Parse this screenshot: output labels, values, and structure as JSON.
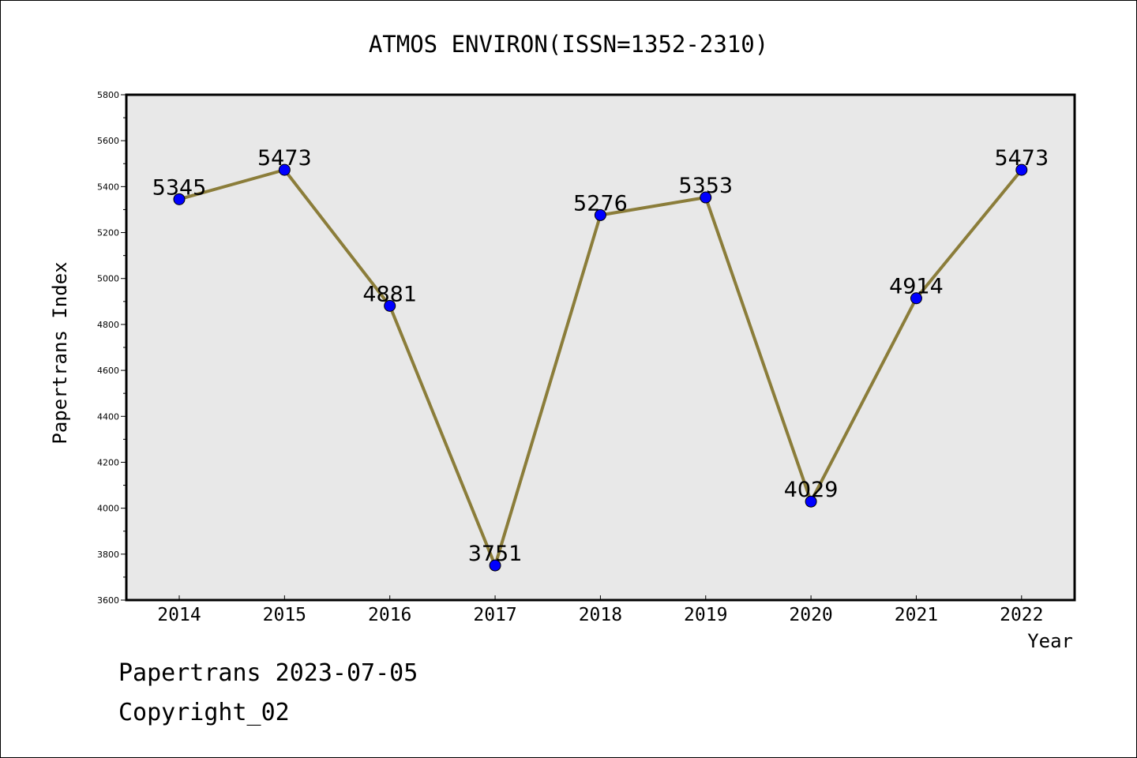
{
  "chart_data": {
    "type": "line",
    "title": "ATMOS ENVIRON(ISSN=1352-2310)",
    "xlabel": "Year",
    "ylabel": "Papertrans Index",
    "categories": [
      "2014",
      "2015",
      "2016",
      "2017",
      "2018",
      "2019",
      "2020",
      "2021",
      "2022"
    ],
    "series": [
      {
        "values": [
          5345,
          5473,
          4881,
          3751,
          5276,
          5353,
          4029,
          4914,
          5473
        ],
        "labels": [
          "5345",
          "5473",
          "4881",
          "3751",
          "5276",
          "5353",
          "4029",
          "4914",
          "5473"
        ]
      }
    ],
    "ylim": [
      3600,
      5800
    ],
    "yticks": [
      3600,
      3800,
      4000,
      4200,
      4400,
      4600,
      4800,
      5000,
      5200,
      5400,
      5600,
      5800
    ],
    "ytick_labels": [
      "3600",
      "3800",
      "4000",
      "4200",
      "4400",
      "4600",
      "4800",
      "5000",
      "5200",
      "5400",
      "5600",
      "5800"
    ],
    "grid": false,
    "legend": "none",
    "colors": {
      "line": "#8b7d3a",
      "marker": "#0000ff",
      "plot_background": "#e8e8e8",
      "axes": "#000000"
    }
  },
  "footer": {
    "line1": "Papertrans 2023-07-05",
    "line2": "Copyright_02"
  }
}
